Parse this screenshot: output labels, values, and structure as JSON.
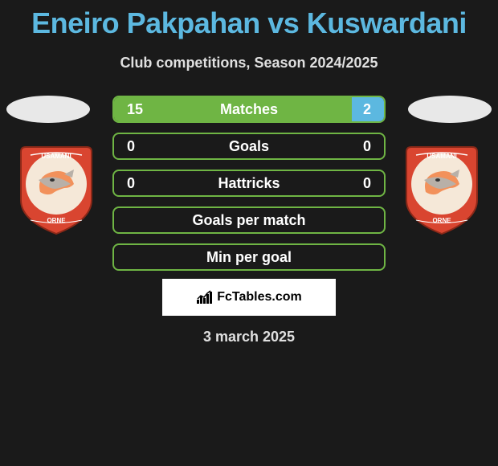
{
  "title": "Eneiro Pakpahan vs Kuswardani",
  "subtitle": "Club competitions, Season 2024/2025",
  "date": "3 march 2025",
  "branding": "FcTables.com",
  "colors": {
    "background": "#1a1a1a",
    "title_color": "#5cb8e0",
    "text_color": "#e0e0e0",
    "bar_border": "#6fb544",
    "left_fill": "#6fb544",
    "right_fill": "#5cb8e0",
    "shield_red": "#d94530",
    "shield_white": "#ffffff",
    "shield_orange": "#f2915b",
    "shield_circle": "#f5e8d8"
  },
  "stats": [
    {
      "label": "Matches",
      "left_value": "15",
      "right_value": "2",
      "left_fill_percent": 88,
      "right_fill_percent": 12
    },
    {
      "label": "Goals",
      "left_value": "0",
      "right_value": "0",
      "left_fill_percent": 0,
      "right_fill_percent": 0
    },
    {
      "label": "Hattricks",
      "left_value": "0",
      "right_value": "0",
      "left_fill_percent": 0,
      "right_fill_percent": 0
    },
    {
      "label": "Goals per match",
      "left_value": "",
      "right_value": "",
      "left_fill_percent": 0,
      "right_fill_percent": 0
    },
    {
      "label": "Min per goal",
      "left_value": "",
      "right_value": "",
      "left_fill_percent": 0,
      "right_fill_percent": 0
    }
  ],
  "typography": {
    "title_fontsize": 36,
    "subtitle_fontsize": 18,
    "stat_label_fontsize": 18,
    "stat_value_fontsize": 18,
    "date_fontsize": 18
  }
}
